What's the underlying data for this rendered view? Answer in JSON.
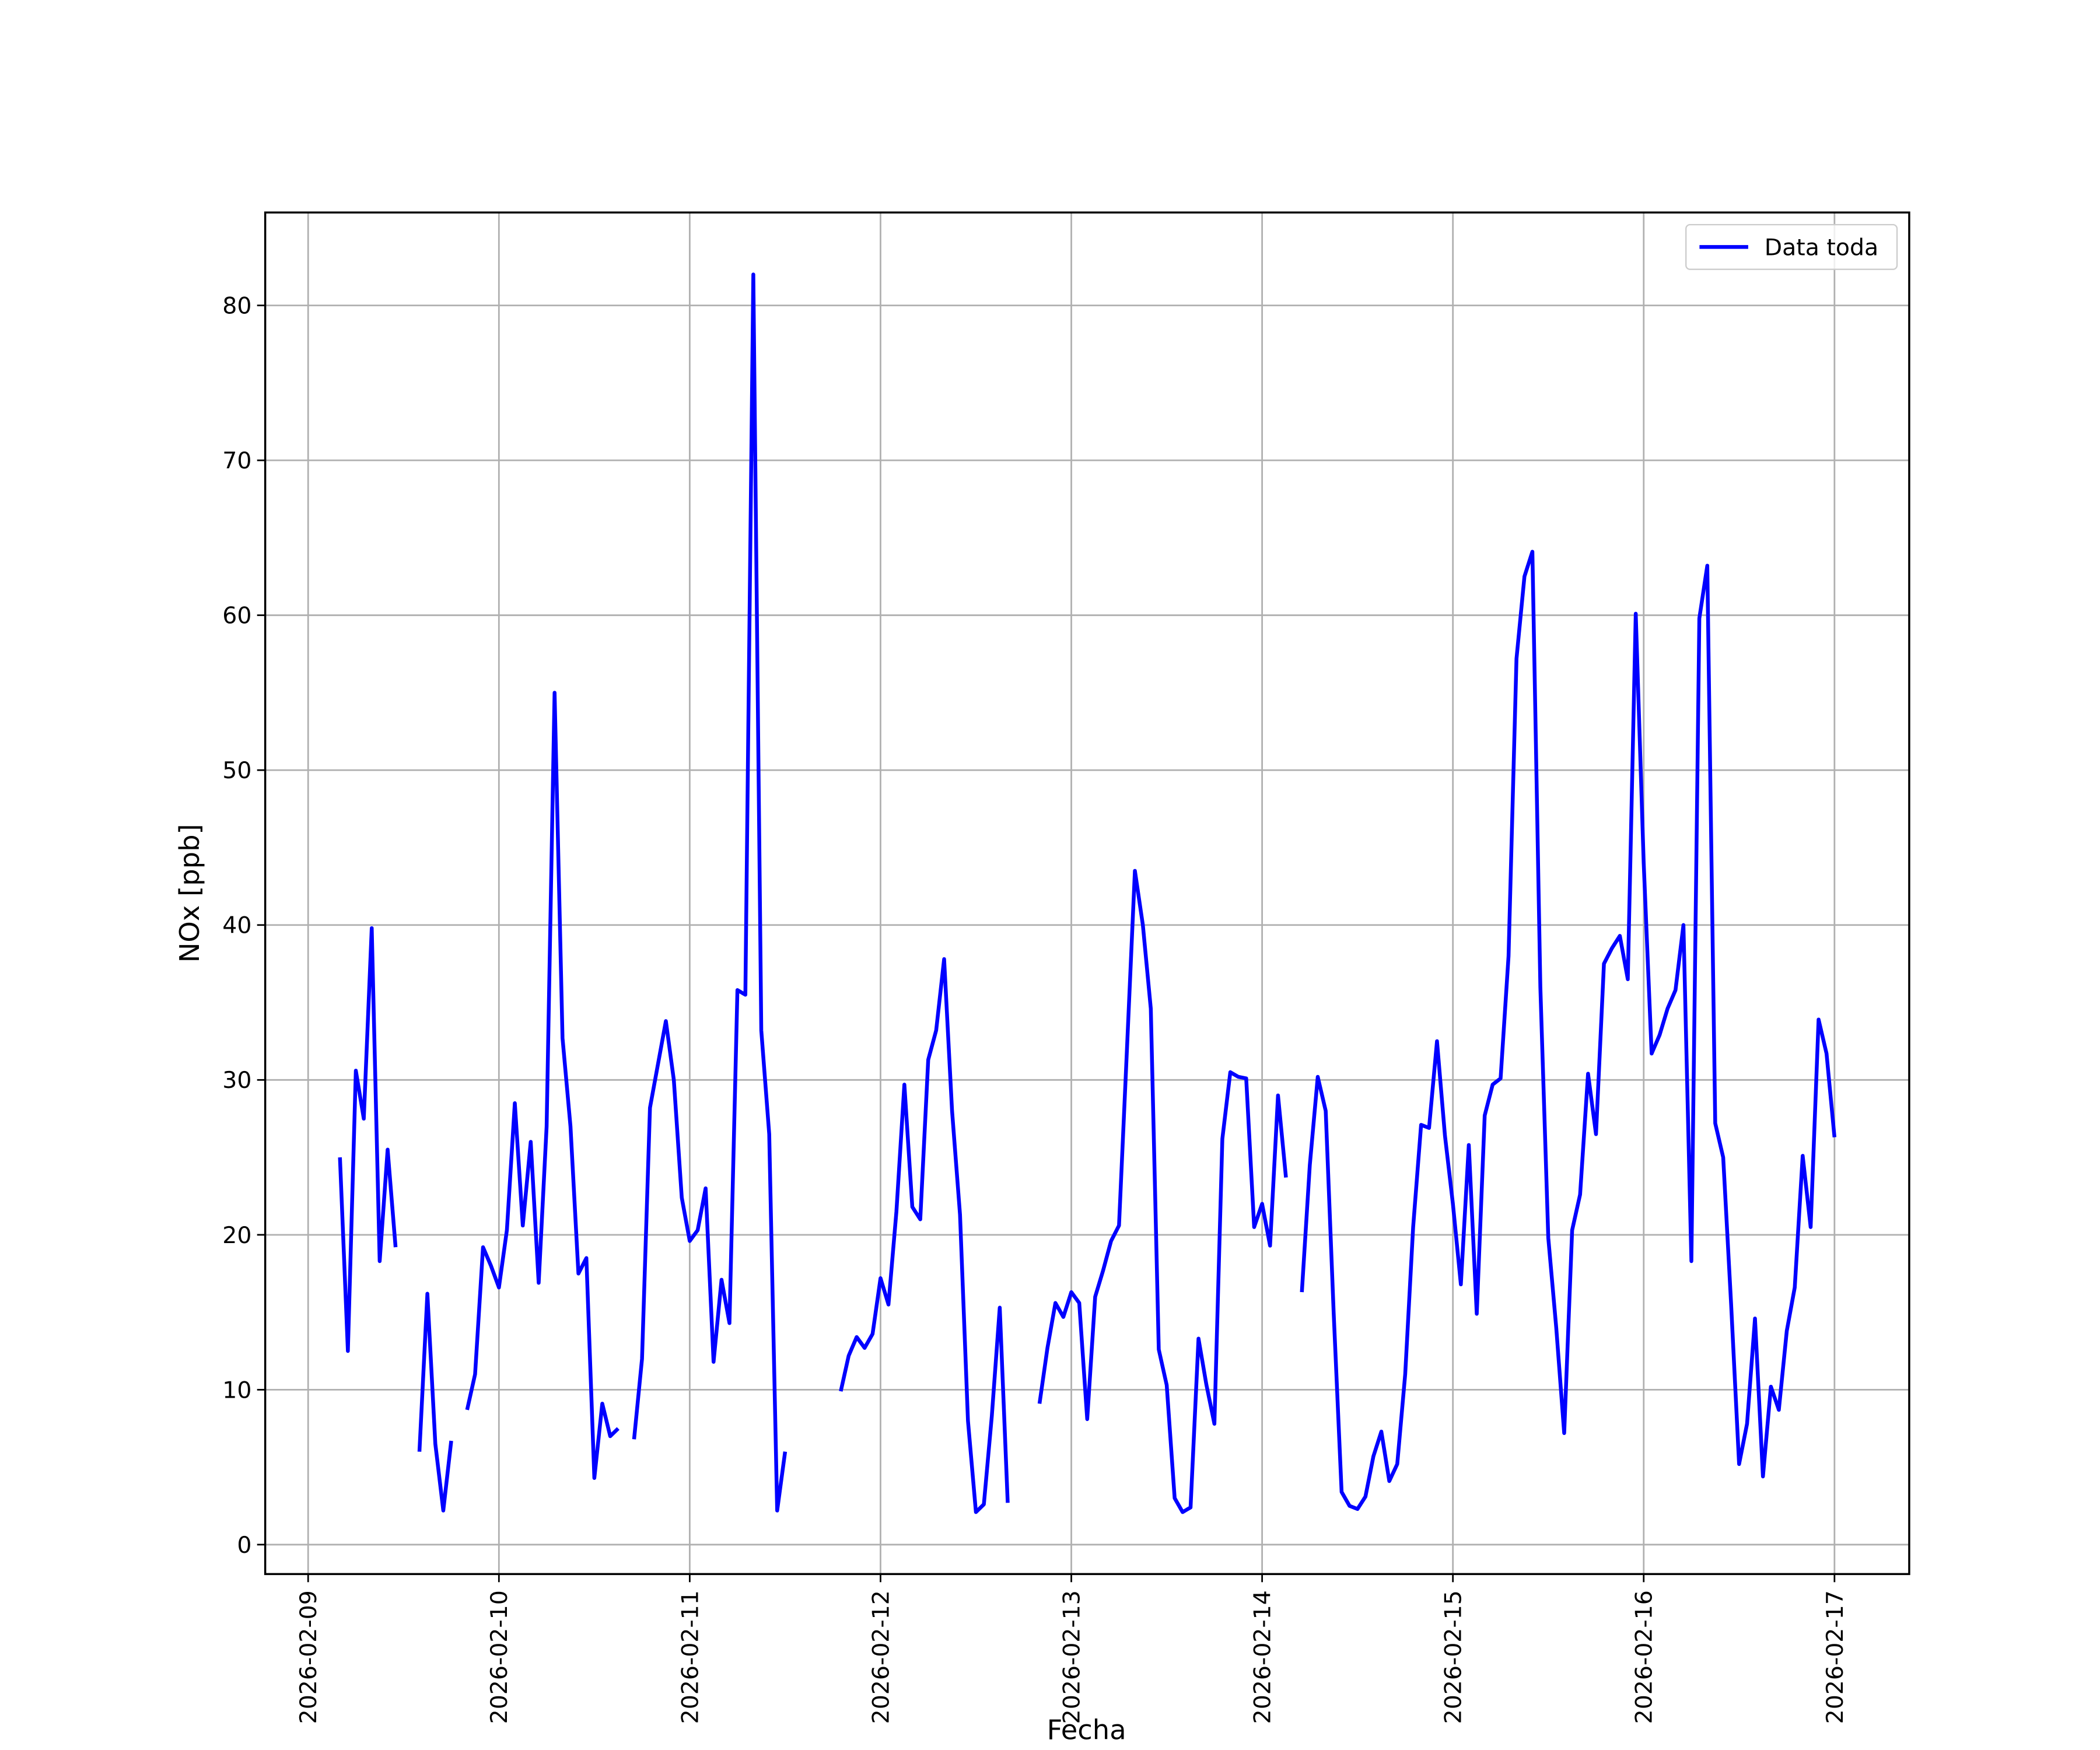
{
  "chart_data": {
    "type": "line",
    "xlabel": "Fecha",
    "ylabel": "NOx [ppb]",
    "x": [
      "2026-02-09T04:00",
      "2026-02-09T05:00",
      "2026-02-09T06:00",
      "2026-02-09T07:00",
      "2026-02-09T08:00",
      "2026-02-09T09:00",
      "2026-02-09T10:00",
      "2026-02-09T11:00",
      "2026-02-09T12:00",
      "2026-02-09T13:00",
      "2026-02-09T14:00",
      "2026-02-09T15:00",
      "2026-02-09T16:00",
      "2026-02-09T17:00",
      "2026-02-09T18:00",
      "2026-02-09T19:00",
      "2026-02-09T20:00",
      "2026-02-09T21:00",
      "2026-02-09T22:00",
      "2026-02-09T23:00",
      "2026-02-10T00:00",
      "2026-02-10T01:00",
      "2026-02-10T02:00",
      "2026-02-10T03:00",
      "2026-02-10T04:00",
      "2026-02-10T05:00",
      "2026-02-10T06:00",
      "2026-02-10T07:00",
      "2026-02-10T08:00",
      "2026-02-10T09:00",
      "2026-02-10T10:00",
      "2026-02-10T11:00",
      "2026-02-10T12:00",
      "2026-02-10T13:00",
      "2026-02-10T14:00",
      "2026-02-10T15:00",
      "2026-02-10T16:00",
      "2026-02-10T17:00",
      "2026-02-10T18:00",
      "2026-02-10T19:00",
      "2026-02-10T20:00",
      "2026-02-10T21:00",
      "2026-02-10T22:00",
      "2026-02-10T23:00",
      "2026-02-11T00:00",
      "2026-02-11T01:00",
      "2026-02-11T02:00",
      "2026-02-11T03:00",
      "2026-02-11T04:00",
      "2026-02-11T05:00",
      "2026-02-11T06:00",
      "2026-02-11T07:00",
      "2026-02-11T08:00",
      "2026-02-11T09:00",
      "2026-02-11T10:00",
      "2026-02-11T11:00",
      "2026-02-11T12:00",
      "2026-02-11T13:00",
      "2026-02-11T14:00",
      "2026-02-11T15:00",
      "2026-02-11T16:00",
      "2026-02-11T17:00",
      "2026-02-11T18:00",
      "2026-02-11T19:00",
      "2026-02-11T20:00",
      "2026-02-11T21:00",
      "2026-02-11T22:00",
      "2026-02-11T23:00",
      "2026-02-12T00:00",
      "2026-02-12T01:00",
      "2026-02-12T02:00",
      "2026-02-12T03:00",
      "2026-02-12T04:00",
      "2026-02-12T05:00",
      "2026-02-12T06:00",
      "2026-02-12T07:00",
      "2026-02-12T08:00",
      "2026-02-12T09:00",
      "2026-02-12T10:00",
      "2026-02-12T11:00",
      "2026-02-12T12:00",
      "2026-02-12T13:00",
      "2026-02-12T14:00",
      "2026-02-12T15:00",
      "2026-02-12T16:00",
      "2026-02-12T17:00",
      "2026-02-12T18:00",
      "2026-02-12T19:00",
      "2026-02-12T20:00",
      "2026-02-12T21:00",
      "2026-02-12T22:00",
      "2026-02-12T23:00",
      "2026-02-13T00:00",
      "2026-02-13T01:00",
      "2026-02-13T02:00",
      "2026-02-13T03:00",
      "2026-02-13T04:00",
      "2026-02-13T05:00",
      "2026-02-13T06:00",
      "2026-02-13T07:00",
      "2026-02-13T08:00",
      "2026-02-13T09:00",
      "2026-02-13T10:00",
      "2026-02-13T11:00",
      "2026-02-13T12:00",
      "2026-02-13T13:00",
      "2026-02-13T14:00",
      "2026-02-13T15:00",
      "2026-02-13T16:00",
      "2026-02-13T17:00",
      "2026-02-13T18:00",
      "2026-02-13T19:00",
      "2026-02-13T20:00",
      "2026-02-13T21:00",
      "2026-02-13T22:00",
      "2026-02-13T23:00",
      "2026-02-14T00:00",
      "2026-02-14T01:00",
      "2026-02-14T02:00",
      "2026-02-14T03:00",
      "2026-02-14T04:00",
      "2026-02-14T05:00",
      "2026-02-14T06:00",
      "2026-02-14T07:00",
      "2026-02-14T08:00",
      "2026-02-14T09:00",
      "2026-02-14T10:00",
      "2026-02-14T11:00",
      "2026-02-14T12:00",
      "2026-02-14T13:00",
      "2026-02-14T14:00",
      "2026-02-14T15:00",
      "2026-02-14T16:00",
      "2026-02-14T17:00",
      "2026-02-14T18:00",
      "2026-02-14T19:00",
      "2026-02-14T20:00",
      "2026-02-14T21:00",
      "2026-02-14T22:00",
      "2026-02-14T23:00",
      "2026-02-15T00:00",
      "2026-02-15T01:00",
      "2026-02-15T02:00",
      "2026-02-15T03:00",
      "2026-02-15T04:00",
      "2026-02-15T05:00",
      "2026-02-15T06:00",
      "2026-02-15T07:00",
      "2026-02-15T08:00",
      "2026-02-15T09:00",
      "2026-02-15T10:00",
      "2026-02-15T11:00",
      "2026-02-15T12:00",
      "2026-02-15T13:00",
      "2026-02-15T14:00",
      "2026-02-15T15:00",
      "2026-02-15T16:00",
      "2026-02-15T17:00",
      "2026-02-15T18:00",
      "2026-02-15T19:00",
      "2026-02-15T20:00",
      "2026-02-15T21:00",
      "2026-02-15T22:00",
      "2026-02-15T23:00",
      "2026-02-16T00:00",
      "2026-02-16T01:00",
      "2026-02-16T02:00",
      "2026-02-16T03:00",
      "2026-02-16T04:00",
      "2026-02-16T05:00",
      "2026-02-16T06:00",
      "2026-02-16T07:00",
      "2026-02-16T08:00",
      "2026-02-16T09:00",
      "2026-02-16T10:00",
      "2026-02-16T11:00",
      "2026-02-16T12:00",
      "2026-02-16T13:00",
      "2026-02-16T14:00",
      "2026-02-16T15:00",
      "2026-02-16T16:00",
      "2026-02-16T17:00",
      "2026-02-16T18:00",
      "2026-02-16T19:00",
      "2026-02-16T20:00",
      "2026-02-16T21:00",
      "2026-02-16T22:00",
      "2026-02-16T23:00",
      "2026-02-17T00:00"
    ],
    "series": [
      {
        "name": "Data toda",
        "color": "#0000ff",
        "values": [
          25,
          12.5,
          30.6,
          27.5,
          39.8,
          18.3,
          25.5,
          19.2,
          null,
          null,
          6,
          16.2,
          6.5,
          2.2,
          6.7,
          null,
          8.7,
          11,
          19.2,
          18,
          16.6,
          20.3,
          28.5,
          20.6,
          26,
          16.9,
          27,
          55,
          32.7,
          27,
          17.5,
          18.5,
          4.3,
          9.1,
          7,
          7.5,
          null,
          6.8,
          12,
          28.2,
          31,
          33.8,
          30,
          22.4,
          19.6,
          20.3,
          23,
          11.8,
          17.1,
          14.3,
          35.8,
          35.5,
          82,
          33.2,
          26.5,
          2.2,
          6,
          null,
          null,
          null,
          null,
          null,
          null,
          9.9,
          12.2,
          13.4,
          12.7,
          13.6,
          17.2,
          15.5,
          21.5,
          29.7,
          21.8,
          21,
          31.3,
          33.2,
          37.8,
          28,
          21.3,
          8,
          2.1,
          2.6,
          8.3,
          15.3,
          2.7,
          null,
          null,
          null,
          9.1,
          12.7,
          15.6,
          14.7,
          16.3,
          15.6,
          8.1,
          16,
          17.7,
          19.6,
          20.6,
          32,
          43.5,
          40,
          34.6,
          12.6,
          10.3,
          3,
          2.1,
          2.4,
          13.3,
          10.3,
          7.8,
          26.2,
          30.5,
          30.2,
          30.1,
          20.5,
          22,
          19.3,
          29,
          23.7,
          null,
          16.3,
          24.5,
          30.2,
          28,
          15,
          3.4,
          2.5,
          2.3,
          3.1,
          5.7,
          7.3,
          4.1,
          5.2,
          11,
          20.5,
          27.1,
          26.9,
          32.5,
          26.4,
          22,
          16.8,
          25.8,
          14.9,
          27.7,
          29.7,
          30.1,
          38,
          57.2,
          62.5,
          64.1,
          36,
          19.8,
          14,
          7.2,
          20.3,
          22.6,
          30.4,
          26.5,
          37.5,
          38.5,
          39.3,
          36.5,
          60.1,
          44,
          31.7,
          32.9,
          34.6,
          35.8,
          40,
          18.3,
          59.8,
          63.2,
          27.2,
          25,
          15.5,
          5.2,
          7.8,
          14.6,
          4.4,
          10.2,
          8.7,
          13.8,
          16.6,
          25.1,
          20.5,
          33.9,
          31.7,
          26.3
        ]
      }
    ],
    "xlim": [
      "2026-02-08T18:36",
      "2026-02-17T09:24"
    ],
    "xticks": [
      "2026-02-09",
      "2026-02-10",
      "2026-02-11",
      "2026-02-12",
      "2026-02-13",
      "2026-02-14",
      "2026-02-15",
      "2026-02-16",
      "2026-02-17"
    ],
    "ylim": [
      -1.9,
      86
    ],
    "yticks": [
      0,
      10,
      20,
      30,
      40,
      50,
      60,
      70,
      80
    ],
    "grid": true,
    "legend": "upper right"
  }
}
